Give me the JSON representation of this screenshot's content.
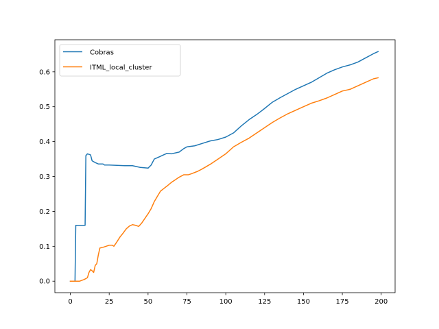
{
  "chart_data": {
    "type": "line",
    "title": "",
    "xlabel": "",
    "ylabel": "",
    "xlim": [
      -9.95,
      208.95
    ],
    "ylim": [
      -0.033,
      0.692
    ],
    "xticks": [
      0,
      25,
      50,
      75,
      100,
      125,
      150,
      175,
      200
    ],
    "yticks": [
      0.0,
      0.1,
      0.2,
      0.3,
      0.4,
      0.5,
      0.6
    ],
    "ytick_labels": [
      "0.0",
      "0.1",
      "0.2",
      "0.3",
      "0.4",
      "0.5",
      "0.6"
    ],
    "grid": false,
    "legend_position": "upper-left",
    "series": [
      {
        "name": "Cobras",
        "color": "#1f77b4",
        "points": [
          [
            0,
            0.0
          ],
          [
            3,
            0.0
          ],
          [
            3.5,
            0.16
          ],
          [
            9,
            0.16
          ],
          [
            9.5,
            0.16
          ],
          [
            10,
            0.36
          ],
          [
            11,
            0.365
          ],
          [
            13,
            0.362
          ],
          [
            14,
            0.345
          ],
          [
            16,
            0.34
          ],
          [
            18,
            0.336
          ],
          [
            21,
            0.336
          ],
          [
            22,
            0.333
          ],
          [
            25,
            0.333
          ],
          [
            30,
            0.332
          ],
          [
            35,
            0.331
          ],
          [
            40,
            0.331
          ],
          [
            42,
            0.329
          ],
          [
            45,
            0.326
          ],
          [
            50,
            0.324
          ],
          [
            52,
            0.333
          ],
          [
            54,
            0.35
          ],
          [
            57,
            0.356
          ],
          [
            60,
            0.362
          ],
          [
            62,
            0.366
          ],
          [
            65,
            0.365
          ],
          [
            70,
            0.37
          ],
          [
            73,
            0.38
          ],
          [
            75,
            0.385
          ],
          [
            80,
            0.388
          ],
          [
            85,
            0.395
          ],
          [
            90,
            0.402
          ],
          [
            95,
            0.406
          ],
          [
            100,
            0.413
          ],
          [
            105,
            0.425
          ],
          [
            110,
            0.445
          ],
          [
            115,
            0.463
          ],
          [
            120,
            0.478
          ],
          [
            125,
            0.495
          ],
          [
            130,
            0.513
          ],
          [
            135,
            0.526
          ],
          [
            140,
            0.538
          ],
          [
            145,
            0.55
          ],
          [
            150,
            0.56
          ],
          [
            155,
            0.57
          ],
          [
            160,
            0.583
          ],
          [
            165,
            0.596
          ],
          [
            170,
            0.606
          ],
          [
            175,
            0.614
          ],
          [
            180,
            0.62
          ],
          [
            185,
            0.628
          ],
          [
            190,
            0.64
          ],
          [
            195,
            0.652
          ],
          [
            198,
            0.658
          ]
        ]
      },
      {
        "name": "ITML_local_cluster",
        "color": "#ff7f0e",
        "points": [
          [
            0,
            0.0
          ],
          [
            6,
            0.0
          ],
          [
            9,
            0.005
          ],
          [
            11,
            0.01
          ],
          [
            12,
            0.025
          ],
          [
            13,
            0.033
          ],
          [
            14,
            0.03
          ],
          [
            15,
            0.025
          ],
          [
            16,
            0.045
          ],
          [
            17,
            0.05
          ],
          [
            18,
            0.075
          ],
          [
            19,
            0.095
          ],
          [
            21,
            0.097
          ],
          [
            23,
            0.1
          ],
          [
            25,
            0.103
          ],
          [
            27,
            0.103
          ],
          [
            28,
            0.1
          ],
          [
            30,
            0.113
          ],
          [
            32,
            0.127
          ],
          [
            34,
            0.138
          ],
          [
            36,
            0.15
          ],
          [
            38,
            0.158
          ],
          [
            40,
            0.162
          ],
          [
            42,
            0.16
          ],
          [
            44,
            0.157
          ],
          [
            46,
            0.167
          ],
          [
            48,
            0.18
          ],
          [
            50,
            0.193
          ],
          [
            52,
            0.208
          ],
          [
            54,
            0.228
          ],
          [
            56,
            0.243
          ],
          [
            58,
            0.258
          ],
          [
            60,
            0.265
          ],
          [
            62,
            0.272
          ],
          [
            65,
            0.283
          ],
          [
            70,
            0.298
          ],
          [
            73,
            0.305
          ],
          [
            76,
            0.305
          ],
          [
            78,
            0.308
          ],
          [
            82,
            0.315
          ],
          [
            85,
            0.322
          ],
          [
            90,
            0.335
          ],
          [
            95,
            0.35
          ],
          [
            100,
            0.365
          ],
          [
            105,
            0.385
          ],
          [
            110,
            0.398
          ],
          [
            115,
            0.41
          ],
          [
            120,
            0.425
          ],
          [
            125,
            0.44
          ],
          [
            130,
            0.455
          ],
          [
            135,
            0.468
          ],
          [
            140,
            0.48
          ],
          [
            145,
            0.49
          ],
          [
            150,
            0.5
          ],
          [
            155,
            0.51
          ],
          [
            160,
            0.517
          ],
          [
            165,
            0.525
          ],
          [
            170,
            0.535
          ],
          [
            175,
            0.545
          ],
          [
            180,
            0.55
          ],
          [
            185,
            0.56
          ],
          [
            190,
            0.57
          ],
          [
            195,
            0.58
          ],
          [
            198,
            0.583
          ]
        ]
      }
    ]
  }
}
